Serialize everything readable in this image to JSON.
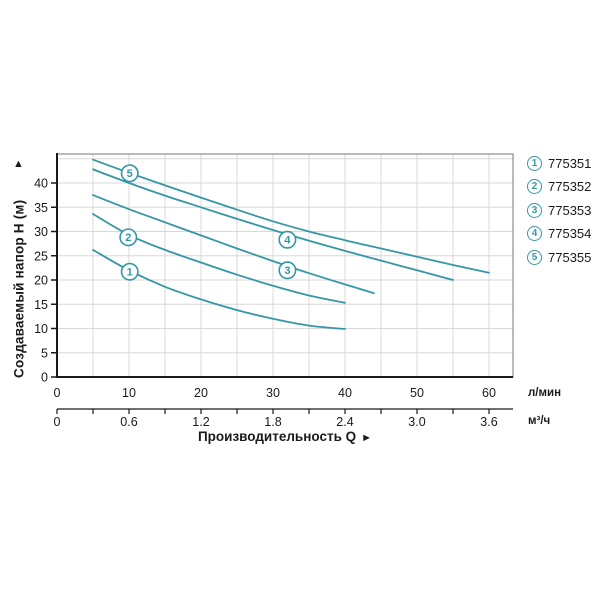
{
  "colors": {
    "curve": "#3597a6",
    "grid": "#d8d8d8",
    "frame": "#777777",
    "axis": "#1a1a1a",
    "text": "#1a1a1a"
  },
  "arrows": {
    "up": "▲",
    "right": "►"
  },
  "chart_data": {
    "type": "line",
    "title": "",
    "xlabel": "Производительность Q",
    "ylabel": "Создаваемый напор H (м)",
    "x_axis_units": [
      "л/мин",
      "м³/ч"
    ],
    "x_ticks_lmin": [
      "0",
      "10",
      "20",
      "30",
      "40",
      "50",
      "60"
    ],
    "x_ticks_m3h": [
      "0",
      "0.6",
      "1.2",
      "1.8",
      "2.4",
      "3.0",
      "3.6"
    ],
    "y_ticks": [
      "0",
      "5",
      "10",
      "15",
      "20",
      "25",
      "30",
      "35",
      "40"
    ],
    "xlim_lmin": [
      0,
      63.3
    ],
    "ylim": [
      0,
      46
    ],
    "grid": true,
    "legend_position": "right",
    "series": [
      {
        "label": "1",
        "code": "775351",
        "marker_pos": {
          "q": 10.1,
          "h": 21.7
        },
        "points": [
          [
            5,
            26.2
          ],
          [
            10,
            22.0
          ],
          [
            15,
            18.6
          ],
          [
            20,
            16.0
          ],
          [
            25,
            13.8
          ],
          [
            30,
            12.0
          ],
          [
            35,
            10.6
          ],
          [
            40,
            9.9
          ]
        ]
      },
      {
        "label": "2",
        "code": "775352",
        "marker_pos": {
          "q": 9.9,
          "h": 28.8
        },
        "points": [
          [
            5,
            33.6
          ],
          [
            10,
            29.3
          ],
          [
            15,
            26.2
          ],
          [
            20,
            23.6
          ],
          [
            25,
            21.1
          ],
          [
            30,
            18.8
          ],
          [
            35,
            16.8
          ],
          [
            40,
            15.3
          ]
        ]
      },
      {
        "label": "3",
        "code": "775353",
        "marker_pos": {
          "q": 32.0,
          "h": 22.0
        },
        "points": [
          [
            5,
            37.5
          ],
          [
            10,
            34.6
          ],
          [
            15,
            31.9
          ],
          [
            20,
            29.2
          ],
          [
            25,
            26.5
          ],
          [
            30,
            23.9
          ],
          [
            35,
            21.4
          ],
          [
            40,
            19.1
          ],
          [
            44,
            17.3
          ]
        ]
      },
      {
        "label": "4",
        "code": "775354",
        "marker_pos": {
          "q": 32.0,
          "h": 28.3
        },
        "points": [
          [
            5,
            42.8
          ],
          [
            10,
            40.0
          ],
          [
            15,
            37.4
          ],
          [
            20,
            35.0
          ],
          [
            25,
            32.6
          ],
          [
            30,
            30.3
          ],
          [
            35,
            28.1
          ],
          [
            40,
            26.0
          ],
          [
            45,
            24.0
          ],
          [
            50,
            22.0
          ],
          [
            55,
            20.0
          ]
        ]
      },
      {
        "label": "5",
        "code": "775355",
        "marker_pos": {
          "q": 10.1,
          "h": 42.0
        },
        "points": [
          [
            5,
            44.8
          ],
          [
            10,
            42.1
          ],
          [
            15,
            39.5
          ],
          [
            20,
            37.0
          ],
          [
            25,
            34.5
          ],
          [
            30,
            32.1
          ],
          [
            35,
            30.0
          ],
          [
            40,
            28.2
          ],
          [
            45,
            26.5
          ],
          [
            50,
            24.8
          ],
          [
            55,
            23.1
          ],
          [
            60,
            21.5
          ]
        ]
      }
    ]
  }
}
